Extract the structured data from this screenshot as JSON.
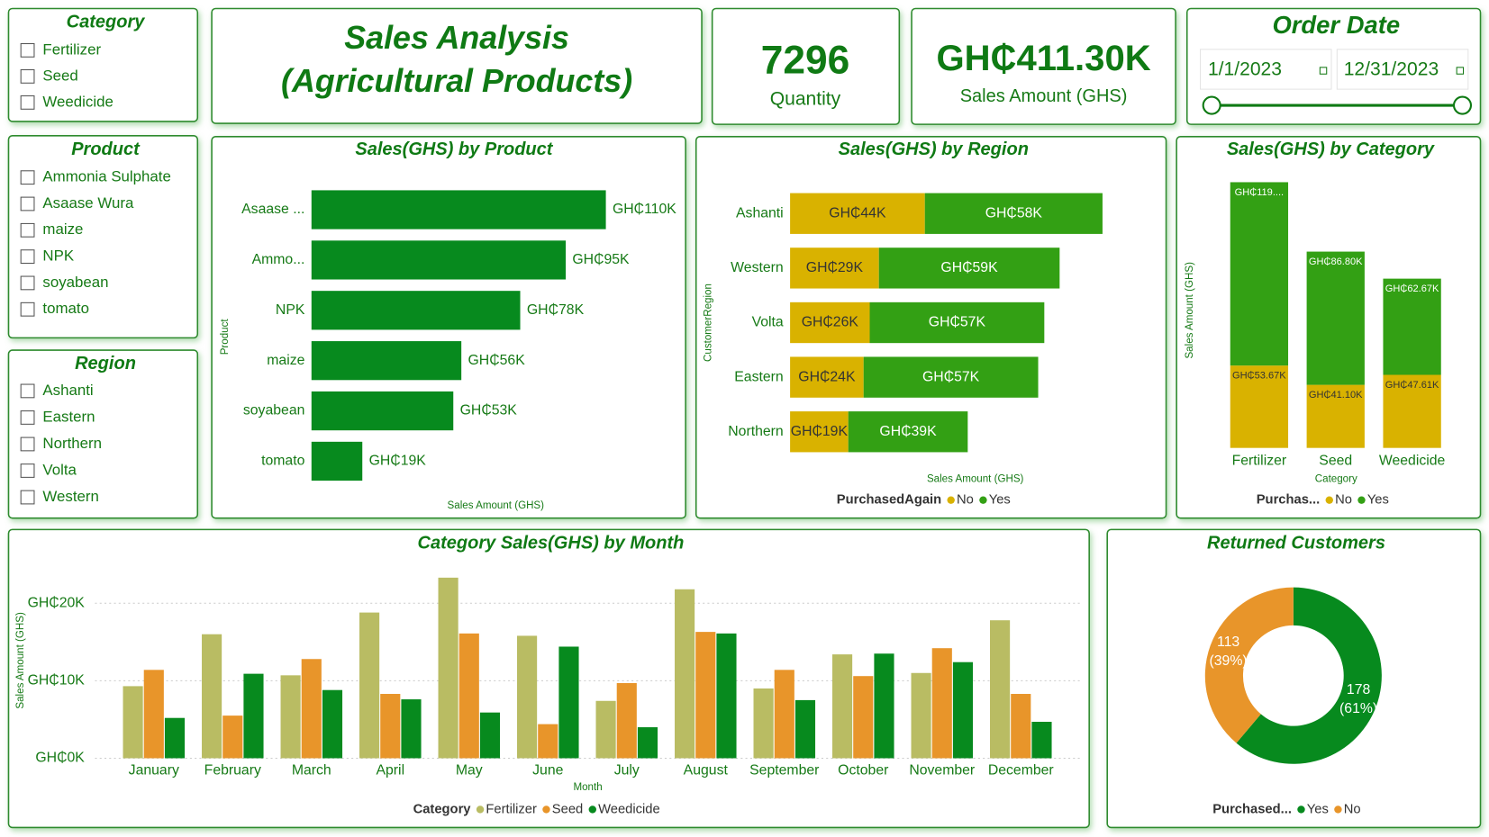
{
  "slicers": [
    {
      "title": "Category",
      "items": [
        "Fertilizer",
        "Seed",
        "Weedicide"
      ]
    },
    {
      "title": "Product",
      "items": [
        "Ammonia Sulphate",
        "Asaase Wura",
        "maize",
        "NPK",
        "soyabean",
        "tomato"
      ]
    },
    {
      "title": "Region",
      "items": [
        "Ashanti",
        "Eastern",
        "Northern",
        "Volta",
        "Western"
      ]
    }
  ],
  "header": {
    "title_line1": "Sales Analysis",
    "title_line2": "(Agricultural Products)"
  },
  "cards": [
    {
      "value": 7296,
      "label": "Quantity"
    },
    {
      "value": "GH₵411.30K",
      "label": "Sales Amount (GHS)"
    }
  ],
  "date_filter": {
    "title": "Order Date",
    "start": "1/1/2023",
    "end": "12/31/2023"
  },
  "chart_data": [
    {
      "type": "bar",
      "title": "Sales(GHS) by Product",
      "x_label": "Sales Amount (GHS)",
      "y_label": "Product",
      "categories": [
        "Asaase ...",
        "Ammo...",
        "NPK",
        "maize",
        "soyabean",
        "tomato"
      ],
      "values": [
        110000,
        95000,
        78000,
        56000,
        53000,
        19000
      ],
      "value_labels": [
        "GH₵110K",
        "GH₵95K",
        "GH₵78K",
        "GH₵56K",
        "GH₵53K",
        "GH₵19K"
      ],
      "color": "#078a1e"
    },
    {
      "type": "stacked_bar",
      "title": "Sales(GHS) by Region",
      "x_label": "Sales Amount (GHS)",
      "y_label": "CustomerRegion",
      "legend_title": "PurchasedAgain",
      "categories": [
        "Ashanti",
        "Western",
        "Volta",
        "Eastern",
        "Northern"
      ],
      "series": [
        {
          "name": "No",
          "color": "#d9b200",
          "values": [
            44000,
            29000,
            26000,
            24000,
            19000
          ],
          "value_labels": [
            "GH₵44K",
            "GH₵29K",
            "GH₵26K",
            "GH₵24K",
            "GH₵19K"
          ]
        },
        {
          "name": "Yes",
          "color": "#33a014",
          "values": [
            58000,
            59000,
            57000,
            57000,
            39000
          ],
          "value_labels": [
            "GH₵58K",
            "GH₵59K",
            "GH₵57K",
            "GH₵57K",
            "GH₵39K"
          ]
        }
      ]
    },
    {
      "type": "stacked_column",
      "title": "Sales(GHS) by Category",
      "x_label": "Category",
      "y_label": "Sales Amount (GHS)",
      "legend_title": "Purchas...",
      "categories": [
        "Fertilizer",
        "Seed",
        "Weedicide"
      ],
      "series": [
        {
          "name": "No",
          "color": "#d9b200",
          "values": [
            53670,
            41100,
            47610
          ],
          "value_labels": [
            "GH₵53.67K",
            "GH₵41.10K",
            "GH₵47.61K"
          ]
        },
        {
          "name": "Yes",
          "color": "#33a014",
          "values": [
            119450,
            86800,
            62670
          ],
          "value_labels": [
            "GH₵119....",
            "GH₵86.80K",
            "GH₵62.67K"
          ]
        }
      ]
    },
    {
      "type": "column",
      "title": "Category Sales(GHS) by Month",
      "x_label": "Month",
      "y_label": "Sales Amount (GHS)",
      "legend_title": "Category",
      "categories": [
        "January",
        "February",
        "March",
        "April",
        "May",
        "June",
        "July",
        "August",
        "September",
        "October",
        "November",
        "December"
      ],
      "series": [
        {
          "name": "Fertilizer",
          "color": "#b9bc63",
          "values": [
            9300,
            16000,
            10700,
            18800,
            23300,
            15800,
            7400,
            21800,
            9000,
            13400,
            11000,
            17800
          ]
        },
        {
          "name": "Seed",
          "color": "#e8952a",
          "values": [
            11400,
            5500,
            12800,
            8300,
            16100,
            4400,
            9700,
            16300,
            11400,
            10600,
            14200,
            8300
          ]
        },
        {
          "name": "Weedicide",
          "color": "#078a1e",
          "values": [
            5200,
            10900,
            8800,
            7600,
            5900,
            14400,
            4000,
            16100,
            7500,
            13500,
            12400,
            4700
          ]
        }
      ],
      "ylim": [
        0,
        24000
      ],
      "yticks": [
        {
          "value": 0,
          "label": "GH₵0K"
        },
        {
          "value": 10000,
          "label": "GH₵10K"
        },
        {
          "value": 20000,
          "label": "GH₵20K"
        }
      ],
      "grid": true
    },
    {
      "type": "donut",
      "title": "Returned Customers",
      "legend_title": "Purchased...",
      "categories": [
        "Yes",
        "No"
      ],
      "values": [
        178,
        113
      ],
      "value_labels": [
        "178",
        "113"
      ],
      "percent_labels": [
        "(61%)",
        "(39%)"
      ],
      "colors": [
        "#078a1e",
        "#e8952a"
      ]
    }
  ]
}
